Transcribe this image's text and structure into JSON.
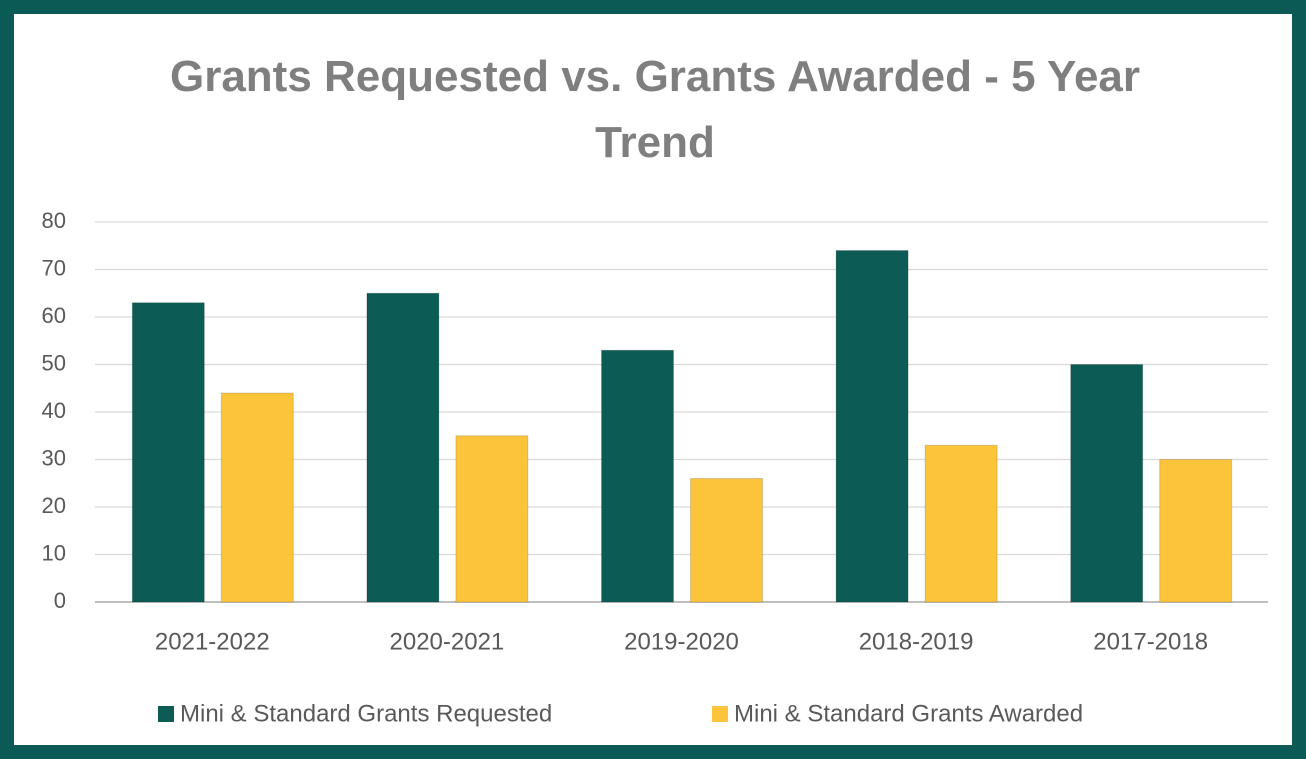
{
  "chart_data": {
    "type": "bar",
    "title": "Grants Requested vs. Grants Awarded - 5 Year Trend",
    "categories": [
      "2021-2022",
      "2020-2021",
      "2019-2020",
      "2018-2019",
      "2017-2018"
    ],
    "series": [
      {
        "name": "Mini & Standard Grants Requested",
        "color": "#0d5b55",
        "values": [
          63,
          65,
          53,
          74,
          50
        ]
      },
      {
        "name": "Mini & Standard Grants Awarded",
        "color": "#fcc43a",
        "values": [
          44,
          35,
          26,
          33,
          30
        ]
      }
    ],
    "ylim": [
      0,
      80
    ],
    "yticks": [
      0,
      10,
      20,
      30,
      40,
      50,
      60,
      70,
      80
    ],
    "grid": true,
    "legend": "bottom"
  }
}
